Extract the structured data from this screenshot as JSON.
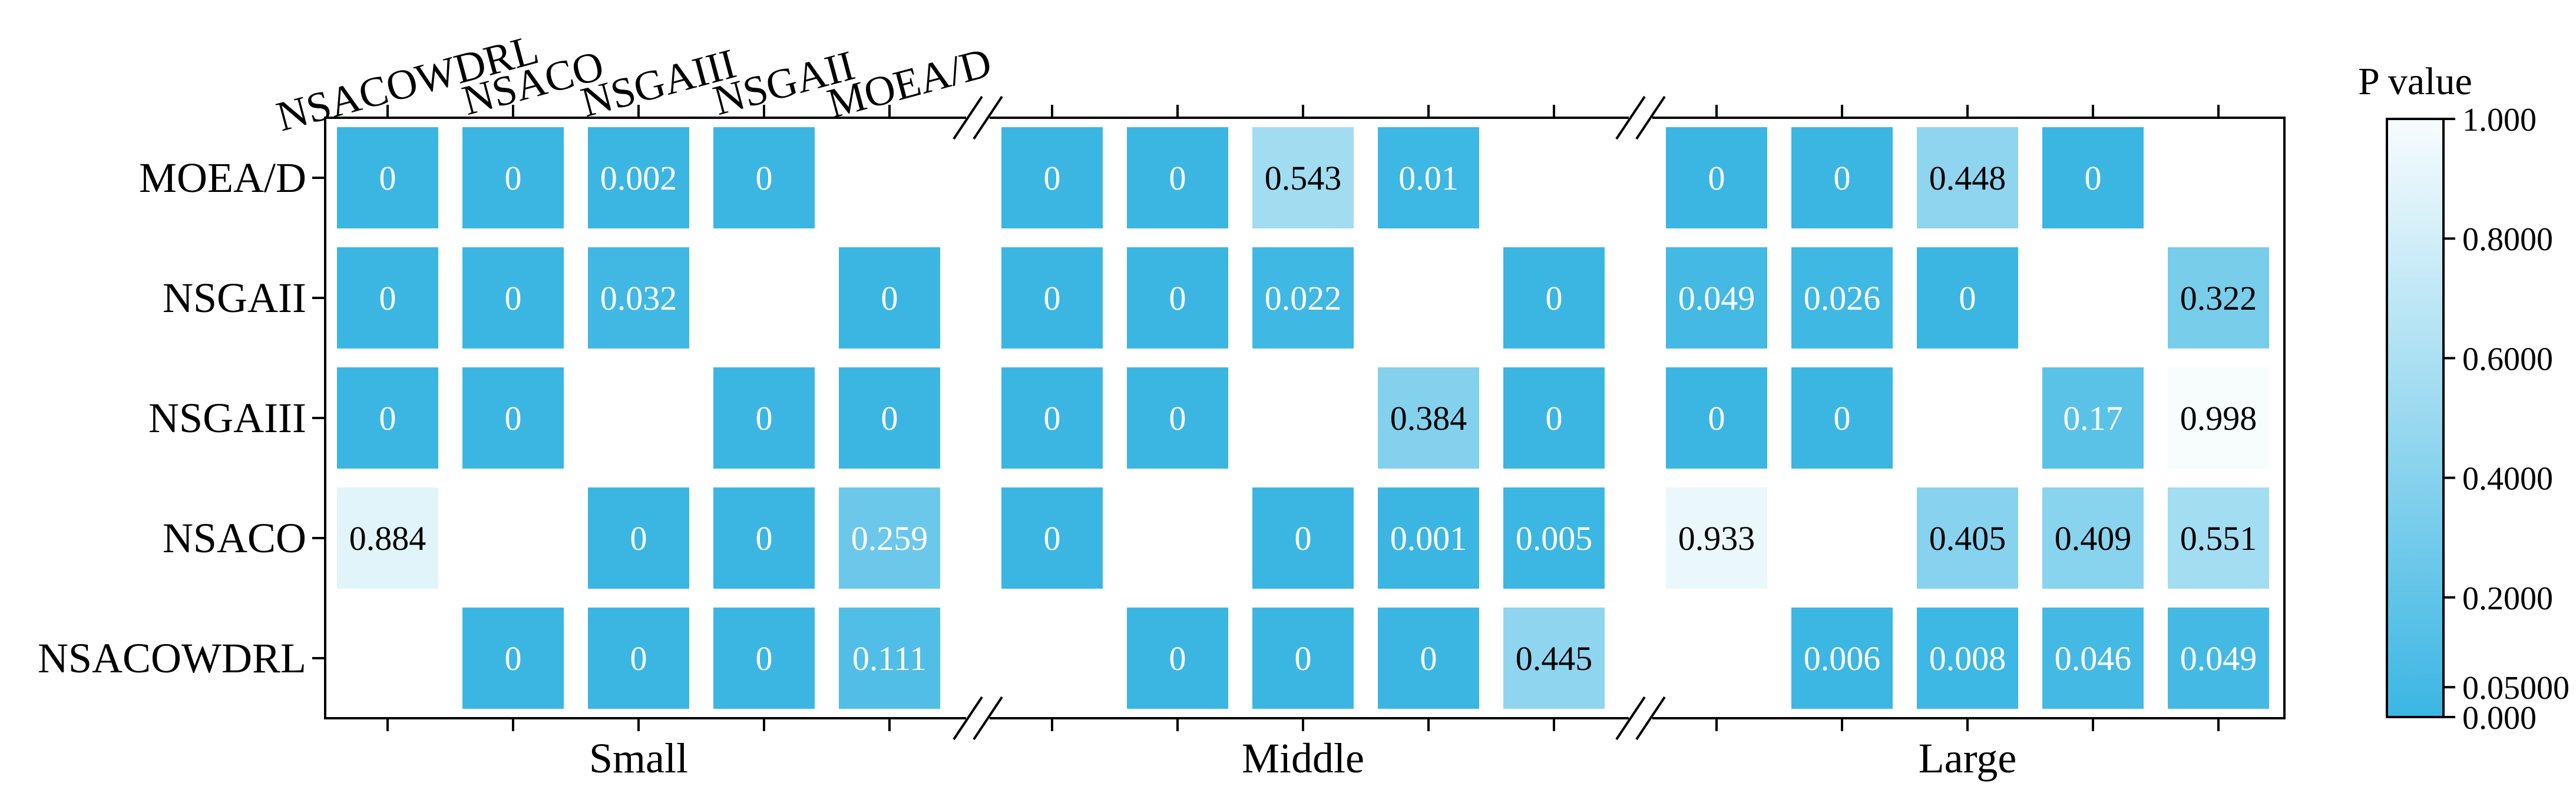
{
  "chart_data": {
    "type": "heatmap",
    "title": "",
    "colorbar": {
      "label": "P value",
      "tick_labels": [
        "1.000",
        "0.8000",
        "0.6000",
        "0.4000",
        "0.2000",
        "0.05000",
        "0.000"
      ],
      "tick_values": [
        1.0,
        0.8,
        0.6,
        0.4,
        0.2,
        0.05,
        0.0
      ],
      "range": [
        0,
        1
      ],
      "color_low": "#3bb6e3",
      "color_high": "#f7fcfd"
    },
    "row_labels": [
      "MOEA/D",
      "NSGAII",
      "NSGAIII",
      "NSACO",
      "NSACOWDRL"
    ],
    "column_labels": [
      "NSACOWDRL",
      "NSACO",
      "NSGAIII",
      "NSGAII",
      "MOEA/D"
    ],
    "group_labels": [
      "Small",
      "Middle",
      "Large"
    ],
    "groups": [
      {
        "name": "Small",
        "cells": [
          [
            "0",
            "0",
            "0.002",
            "0",
            null
          ],
          [
            "0",
            "0",
            "0.032",
            null,
            "0"
          ],
          [
            "0",
            "0",
            null,
            "0",
            "0"
          ],
          [
            "0.884",
            null,
            "0",
            "0",
            "0.259"
          ],
          [
            null,
            "0",
            "0",
            "0",
            "0.111"
          ]
        ]
      },
      {
        "name": "Middle",
        "cells": [
          [
            "0",
            "0",
            "0.543",
            "0.01",
            null
          ],
          [
            "0",
            "0",
            "0.022",
            null,
            "0"
          ],
          [
            "0",
            "0",
            null,
            "0.384",
            "0"
          ],
          [
            "0",
            null,
            "0",
            "0.001",
            "0.005"
          ],
          [
            null,
            "0",
            "0",
            "0",
            "0.445"
          ]
        ]
      },
      {
        "name": "Large",
        "cells": [
          [
            "0",
            "0",
            "0.448",
            "0",
            null
          ],
          [
            "0.049",
            "0.026",
            "0",
            null,
            "0.322"
          ],
          [
            "0",
            "0",
            null,
            "0.17",
            "0.998"
          ],
          [
            "0.933",
            null,
            "0.405",
            "0.409",
            "0.551"
          ],
          [
            null,
            "0.006",
            "0.008",
            "0.046",
            "0.049"
          ]
        ]
      }
    ]
  }
}
